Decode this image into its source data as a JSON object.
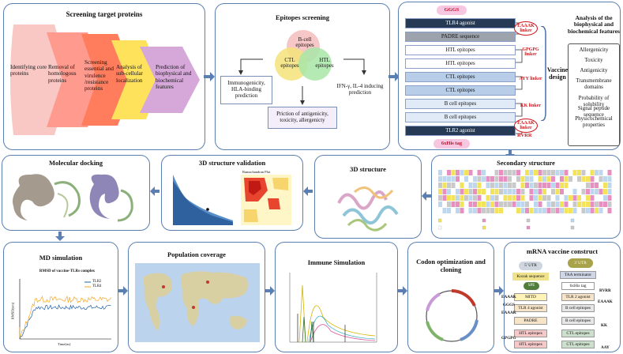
{
  "screening": {
    "title": "Screening target proteins",
    "steps": [
      "Identifying core proteins",
      "Removal of homologous proteins",
      "Screening essential and virulence /resistance proteins",
      "Analysis of sub-cellular localization",
      "Prediction of biophysical and biochemical features"
    ],
    "colors": [
      "#f9c7c4",
      "#ff9a8e",
      "#ff7d5c",
      "#ffe25b",
      "#d6a8d9"
    ]
  },
  "epitopes": {
    "title": "Epitopes screening",
    "circles": [
      "B-cell epitopes",
      "CTL epitopes",
      "HTL epitopes"
    ],
    "left_box": "Immunogenicity, HLA-binding prediction",
    "right_box": "IFN-γ, IL-4 inducing prediction",
    "bottom_box": "Priction of antigenicity, toxicity, allergenicty"
  },
  "vaccine": {
    "gggs": "GGGS",
    "rows": [
      "TLR4 agonist",
      "PADRE sequence",
      "HTL epitopes",
      "HTL epitopes",
      "CTL epitopes",
      "CTL epitopes",
      "B cell epitopes",
      "B cell epitopes",
      "TLR2 agonist"
    ],
    "linkers": [
      "EAAAK linker",
      "GPGPG linker",
      "AYY linker",
      "KK linker",
      "EAAAK linker"
    ],
    "rvrr": "RVRR",
    "his": "6xHis tag",
    "label": "Vaccine design"
  },
  "analysis": {
    "title": "Analysis of the biophysical and biochemical features",
    "items": [
      "Allergenicity",
      "Toxicity",
      "Antigenicity",
      "Transmembrane domains",
      "Probability of solubility",
      "Signal peptide sequence",
      "Physicochemical properties"
    ]
  },
  "docking": {
    "title": "Molecular docking"
  },
  "validation": {
    "title": "3D structure validation",
    "plot_title": "Ramachandran Plot"
  },
  "structure3d": {
    "title": "3D structure"
  },
  "secondary": {
    "title": "Secondary structure"
  },
  "md": {
    "title": "MD simulation",
    "chart_title": "RMSD of vaccine-TLRs complex",
    "legend": [
      "TLR2",
      "TLR4"
    ],
    "xlabel": "Time(ns)",
    "ylabel": "RMSD(nm)",
    "colors": [
      "#1f5fa8",
      "#f5a623"
    ]
  },
  "population": {
    "title": "Population coverage"
  },
  "immune": {
    "title": "Immune Simulation"
  },
  "codon": {
    "title": "Codon optimization and cloning"
  },
  "mrna": {
    "title": "mRNA vaccine construct",
    "utr5": "5' UTR",
    "utr3": "3' UTR",
    "kozak": "Kozak sequence",
    "sig": "SPE",
    "mitd": "MITD",
    "left_rows": [
      "TLR 4 agonist",
      "PADRE",
      "HTL epitopes",
      "HTL epitopes"
    ],
    "right_rows": [
      "TAA terminator",
      "6xHis tag",
      "TLR 2 agonist",
      "B cell epitopes",
      "B cell epitopes",
      "CTL epitopes",
      "CTL epitopes"
    ],
    "left_labels": [
      "EAAAK",
      "GGGS",
      "EAAAK",
      "GPGPG"
    ],
    "right_labels": [
      "RVRR",
      "EAAAK",
      "KK",
      "AAY"
    ]
  }
}
